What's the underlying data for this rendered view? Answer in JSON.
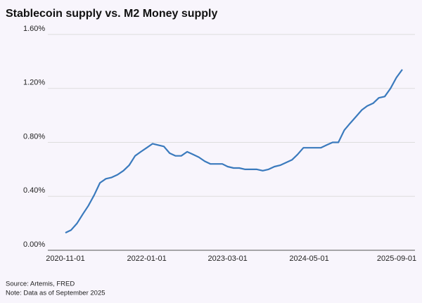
{
  "chart_data": {
    "type": "line",
    "title": "Stablecoin supply vs. M2 Money supply",
    "source": "Source: Artemis, FRED",
    "note": "Note: Data as of September 2025",
    "x": [
      "2020-11",
      "2020-12",
      "2021-01",
      "2021-02",
      "2021-03",
      "2021-04",
      "2021-05",
      "2021-06",
      "2021-07",
      "2021-08",
      "2021-09",
      "2021-10",
      "2021-11",
      "2021-12",
      "2022-01",
      "2022-02",
      "2022-03",
      "2022-04",
      "2022-05",
      "2022-06",
      "2022-07",
      "2022-08",
      "2022-09",
      "2022-10",
      "2022-11",
      "2022-12",
      "2023-01",
      "2023-02",
      "2023-03",
      "2023-04",
      "2023-05",
      "2023-06",
      "2023-07",
      "2023-08",
      "2023-09",
      "2023-10",
      "2023-11",
      "2023-12",
      "2024-01",
      "2024-02",
      "2024-03",
      "2024-04",
      "2024-05",
      "2024-06",
      "2024-07",
      "2024-08",
      "2024-09",
      "2024-10",
      "2024-11",
      "2024-12",
      "2025-01",
      "2025-02",
      "2025-03",
      "2025-04",
      "2025-05",
      "2025-06",
      "2025-07",
      "2025-08",
      "2025-09"
    ],
    "series": [
      {
        "name": "Stablecoin supply vs. M2",
        "color": "#3a7abd",
        "values": [
          0.13,
          0.15,
          0.2,
          0.27,
          0.33,
          0.41,
          0.5,
          0.53,
          0.54,
          0.56,
          0.59,
          0.63,
          0.7,
          0.73,
          0.76,
          0.79,
          0.78,
          0.77,
          0.72,
          0.7,
          0.7,
          0.73,
          0.71,
          0.69,
          0.66,
          0.64,
          0.64,
          0.64,
          0.62,
          0.61,
          0.61,
          0.6,
          0.6,
          0.6,
          0.59,
          0.6,
          0.62,
          0.63,
          0.65,
          0.67,
          0.71,
          0.76,
          0.76,
          0.76,
          0.76,
          0.78,
          0.8,
          0.8,
          0.89,
          0.94,
          0.99,
          1.04,
          1.07,
          1.09,
          1.13,
          1.14,
          1.2,
          1.28,
          1.34
        ]
      }
    ],
    "xlim": [
      "2020-11-01",
      "2025-09-01"
    ],
    "xticks": [
      "2020-11-01",
      "2022-01-01",
      "2023-03-01",
      "2024-05-01",
      "2025-09-01"
    ],
    "ylim": [
      0,
      1.6
    ],
    "yticks": [
      {
        "value": 0,
        "label": "0.00%"
      },
      {
        "value": 0.4,
        "label": "0.40%"
      },
      {
        "value": 0.8,
        "label": "0.80%"
      },
      {
        "value": 1.2,
        "label": "1.20%"
      },
      {
        "value": 1.6,
        "label": "1.60%"
      }
    ],
    "grid": true
  }
}
